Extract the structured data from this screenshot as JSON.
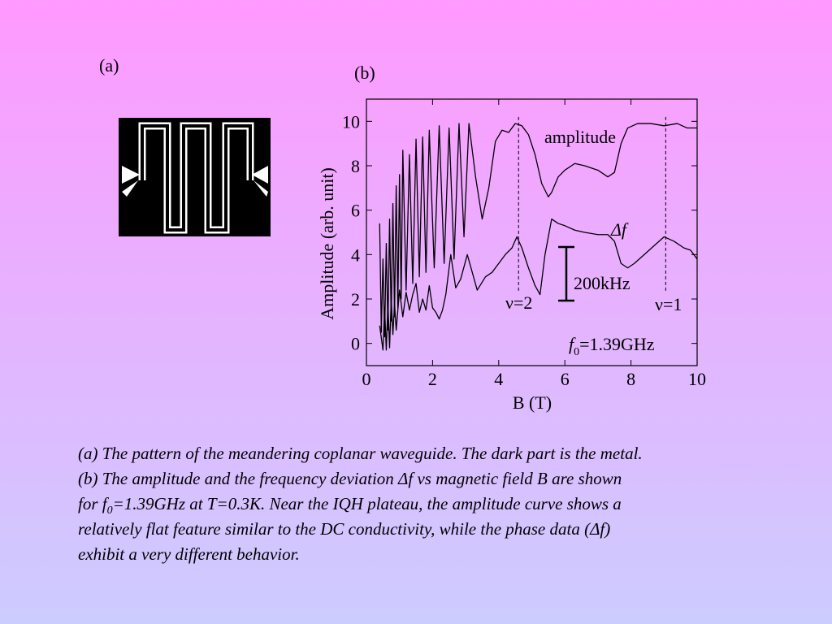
{
  "panel_labels": [
    "(a)",
    "(b)"
  ],
  "chart_data": {
    "type": "line",
    "ylabel": "Amplitude (arb. unit)",
    "xlabel": "B (T)",
    "xlim": [
      0,
      10
    ],
    "xticks": [
      0,
      2,
      4,
      6,
      8,
      10
    ],
    "ylim": [
      -1,
      11
    ],
    "yticks": [
      0,
      2,
      4,
      6,
      8,
      10
    ],
    "series": [
      {
        "name": "amplitude",
        "color": "#000000",
        "x": [
          0.4,
          0.45,
          0.5,
          0.55,
          0.6,
          0.65,
          0.7,
          0.75,
          0.8,
          0.85,
          0.9,
          0.95,
          1.0,
          1.05,
          1.1,
          1.2,
          1.3,
          1.4,
          1.5,
          1.6,
          1.7,
          1.8,
          1.9,
          2.05,
          2.2,
          2.35,
          2.5,
          2.65,
          2.8,
          2.95,
          3.1,
          3.3,
          3.5,
          3.7,
          3.9,
          4.1,
          4.3,
          4.5,
          4.7,
          4.9,
          5.1,
          5.3,
          5.5,
          5.6,
          5.8,
          6.0,
          6.3,
          6.6,
          7.0,
          7.3,
          7.5,
          7.7,
          7.9,
          8.2,
          8.6,
          9.0,
          9.4,
          9.7,
          10.0
        ],
        "values": [
          5.4,
          0.5,
          3.8,
          0.3,
          4.5,
          0.6,
          5.6,
          1.0,
          6.3,
          1.2,
          7.1,
          1.6,
          7.6,
          2.0,
          8.7,
          2.4,
          8.5,
          2.7,
          9.2,
          3.0,
          9.3,
          3.2,
          9.6,
          3.4,
          9.8,
          3.6,
          9.7,
          3.8,
          9.9,
          4.8,
          9.9,
          7.5,
          5.6,
          7.0,
          9.1,
          9.6,
          9.5,
          9.9,
          9.8,
          9.4,
          8.5,
          7.2,
          6.6,
          6.8,
          7.5,
          7.8,
          8.1,
          8.0,
          7.8,
          7.5,
          7.7,
          9.0,
          9.7,
          9.9,
          9.9,
          9.8,
          9.9,
          9.7,
          9.7
        ]
      },
      {
        "name": "Δf",
        "color": "#000000",
        "x": [
          0.4,
          0.5,
          0.55,
          0.6,
          0.65,
          0.7,
          0.75,
          0.8,
          0.85,
          0.9,
          1.0,
          1.1,
          1.2,
          1.3,
          1.4,
          1.5,
          1.6,
          1.7,
          1.8,
          1.9,
          2.0,
          2.1,
          2.2,
          2.3,
          2.4,
          2.55,
          2.7,
          2.85,
          3.05,
          3.2,
          3.35,
          3.6,
          3.8,
          4.0,
          4.2,
          4.4,
          4.55,
          4.7,
          4.9,
          5.1,
          5.25,
          5.4,
          5.6,
          5.8,
          6.0,
          6.3,
          6.6,
          7.0,
          7.3,
          7.5,
          7.7,
          7.9,
          8.1,
          8.4,
          8.7,
          9.0,
          9.3,
          9.6,
          9.8,
          10.0
        ],
        "values": [
          0.8,
          -0.3,
          1.6,
          -0.3,
          1.8,
          -0.2,
          2.0,
          0.4,
          1.8,
          0.6,
          2.4,
          1.2,
          2.3,
          1.5,
          2.2,
          2.7,
          1.4,
          2.0,
          1.5,
          2.6,
          1.6,
          1.4,
          1.1,
          1.5,
          2.2,
          4.0,
          2.5,
          2.9,
          4.0,
          3.2,
          2.4,
          3.0,
          3.2,
          3.6,
          4.0,
          4.3,
          4.8,
          4.3,
          3.4,
          2.6,
          2.2,
          4.0,
          5.6,
          5.4,
          5.3,
          5.1,
          5.0,
          4.9,
          4.9,
          4.6,
          3.6,
          3.4,
          3.6,
          4.0,
          4.4,
          4.8,
          4.6,
          4.3,
          4.2,
          3.8
        ]
      }
    ],
    "dashed_lines": [
      4.6,
      9.05
    ],
    "annotations": {
      "nu2": "ν=2",
      "nu1": "ν=1",
      "scale": "200kHz",
      "f0": [
        "f",
        "0",
        "=1.39GHz"
      ]
    }
  },
  "caption": [
    [
      "(a) The pattern of the meandering coplanar waveguide. The dark part is the metal."
    ],
    [
      "(b) The amplitude and the frequency deviation Δf vs magnetic field B are shown"
    ],
    [
      "for f",
      "0",
      "=1.39GHz at T=0.3K. Near the IQH plateau, the amplitude curve shows a"
    ],
    [
      "relatively flat feature similar to the DC conductivity, while the phase data (Δf)"
    ],
    [
      "exhibit a very different behavior."
    ]
  ]
}
